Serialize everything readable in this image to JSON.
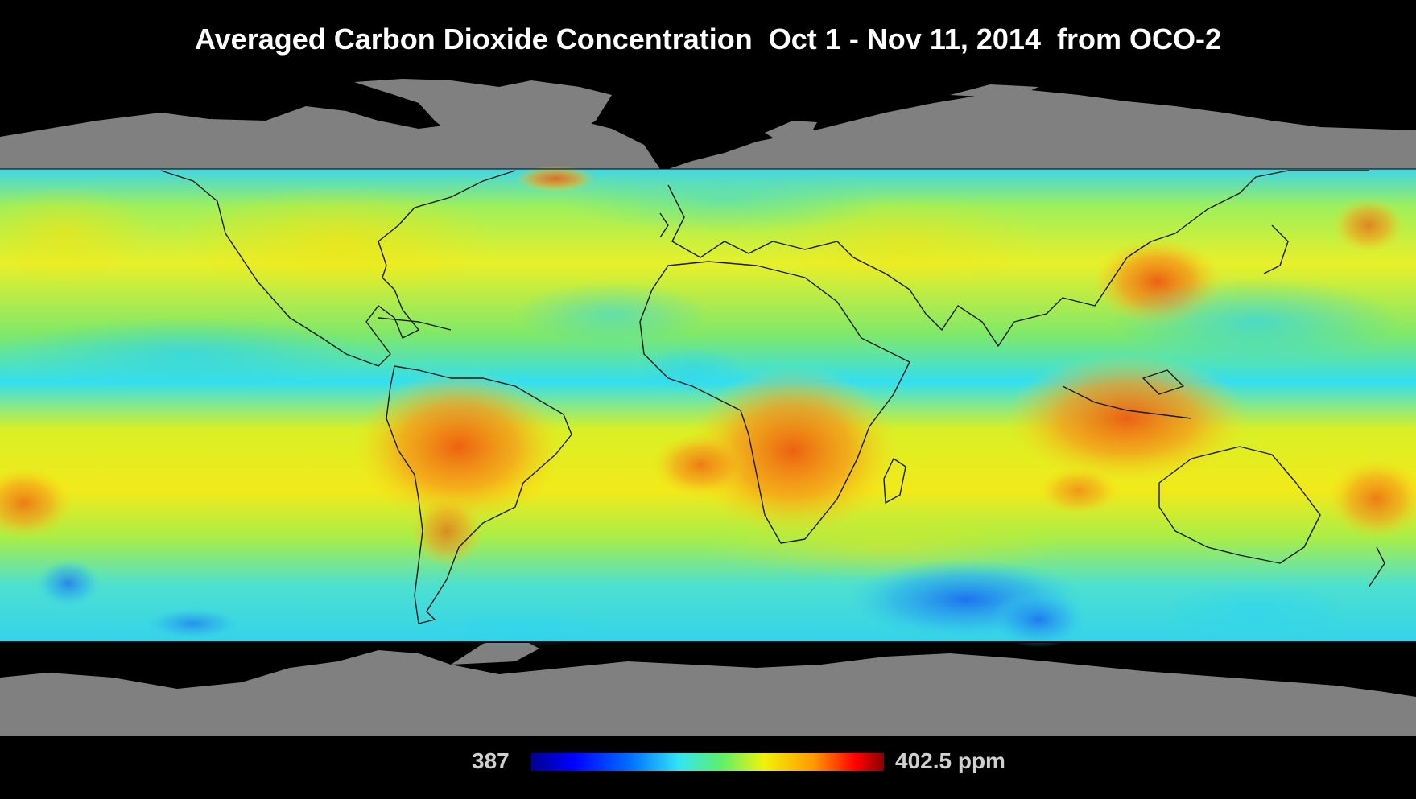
{
  "title": "Averaged Carbon Dioxide Concentration  Oct 1 - Nov 11, 2014  from OCO-2",
  "legend": {
    "min_label": "387",
    "max_label": "402.5 ppm",
    "min_value": 387,
    "max_value": 402.5,
    "unit": "ppm"
  },
  "colors": {
    "background": "#000000",
    "land_outside_coverage": "#808080",
    "low": "#0000ff",
    "mid": "#f2f20a",
    "high": "#ff0000"
  },
  "map": {
    "projection": "equirectangular",
    "coverage_band": "mid-latitudes (data shown between northern and southern land masks)"
  }
}
